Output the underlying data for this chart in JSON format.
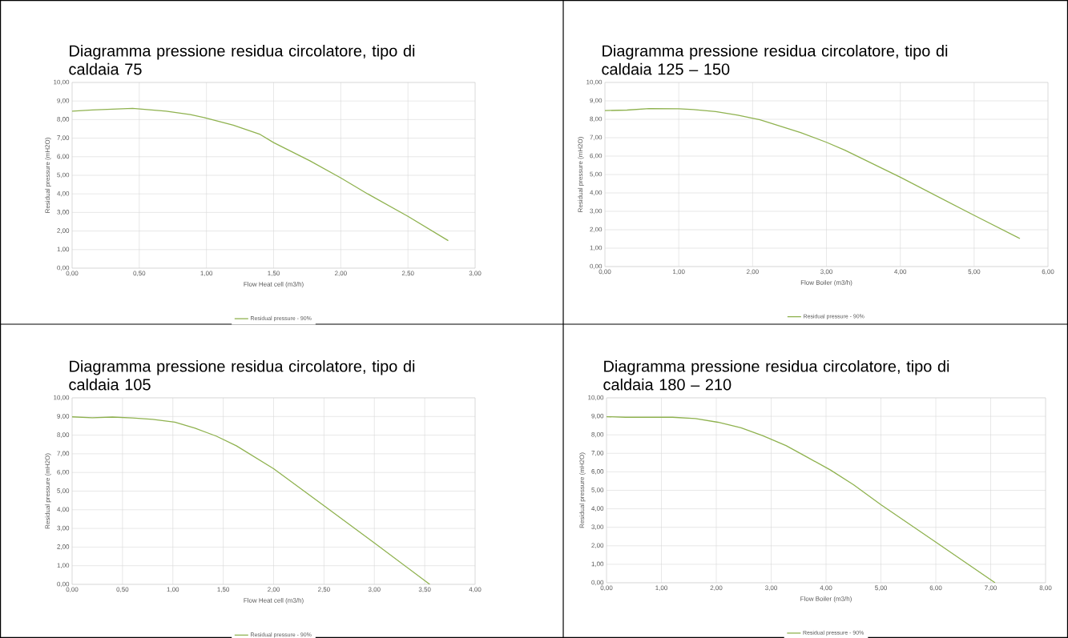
{
  "chart_data": [
    {
      "type": "line",
      "title": "Diagramma pressione residua circolatore, tipo di caldaia 75",
      "xlabel": "Flow Heat cell (m3/h)",
      "ylabel": "Residual pressure (mH2O)",
      "x": [
        0,
        0.15,
        0.45,
        0.7,
        0.88,
        1.0,
        1.2,
        1.4,
        1.5,
        1.77,
        2.0,
        2.2,
        2.5,
        2.8
      ],
      "series": [
        {
          "name": "Residual pressure - 90%",
          "color": "#8fb24f",
          "values": [
            8.45,
            8.52,
            8.6,
            8.45,
            8.27,
            8.08,
            7.7,
            7.2,
            6.76,
            5.78,
            4.86,
            4.0,
            2.79,
            1.48
          ]
        }
      ],
      "xlim": [
        0,
        3
      ],
      "ylim": [
        0,
        10
      ],
      "xticks": [
        {
          "value": 0,
          "label": "0,00"
        },
        {
          "value": 0.5,
          "label": "0,50"
        },
        {
          "value": 1,
          "label": "1,00"
        },
        {
          "value": 1.5,
          "label": "1,50"
        },
        {
          "value": 2,
          "label": "2,00"
        },
        {
          "value": 2.5,
          "label": "2,50"
        },
        {
          "value": 3,
          "label": "3,00"
        }
      ],
      "yticks": [
        {
          "value": 0,
          "label": "0,00"
        },
        {
          "value": 1,
          "label": "1,00"
        },
        {
          "value": 2,
          "label": "2,00"
        },
        {
          "value": 3,
          "label": "3,00"
        },
        {
          "value": 4,
          "label": "4,00"
        },
        {
          "value": 5,
          "label": "5,00"
        },
        {
          "value": 6,
          "label": "6,00"
        },
        {
          "value": 7,
          "label": "7,00"
        },
        {
          "value": 8,
          "label": "8,00"
        },
        {
          "value": 9,
          "label": "9,00"
        },
        {
          "value": 10,
          "label": "10,00"
        }
      ],
      "grid": true,
      "legend": "bottom",
      "marker": "none",
      "line_style": "solid"
    },
    {
      "type": "line",
      "title": "Diagramma pressione residua circolatore, tipo di caldaia 125 – 150",
      "xlabel": "Flow Boiler (m3/h)",
      "ylabel": "Residual pressure (mH2O)",
      "x": [
        0,
        0.3,
        0.6,
        1.0,
        1.2,
        1.5,
        1.8,
        2.1,
        2.65,
        3.0,
        3.25,
        4.0,
        5.0,
        5.62
      ],
      "series": [
        {
          "name": "Residual pressure - 90%",
          "color": "#8fb24f",
          "values": [
            8.47,
            8.5,
            8.58,
            8.57,
            8.53,
            8.42,
            8.22,
            7.97,
            7.28,
            6.75,
            6.32,
            4.85,
            2.78,
            1.52
          ]
        }
      ],
      "xlim": [
        0,
        6
      ],
      "ylim": [
        0,
        10
      ],
      "xticks": [
        {
          "value": 0,
          "label": "0,00"
        },
        {
          "value": 1,
          "label": "1,00"
        },
        {
          "value": 2,
          "label": "2,00"
        },
        {
          "value": 3,
          "label": "3,00"
        },
        {
          "value": 4,
          "label": "4,00"
        },
        {
          "value": 5,
          "label": "5,00"
        },
        {
          "value": 6,
          "label": "6,00"
        }
      ],
      "yticks": [
        {
          "value": 0,
          "label": "0,00"
        },
        {
          "value": 1,
          "label": "1,00"
        },
        {
          "value": 2,
          "label": "2,00"
        },
        {
          "value": 3,
          "label": "3,00"
        },
        {
          "value": 4,
          "label": "4,00"
        },
        {
          "value": 5,
          "label": "5,00"
        },
        {
          "value": 6,
          "label": "6,00"
        },
        {
          "value": 7,
          "label": "7,00"
        },
        {
          "value": 8,
          "label": "8,00"
        },
        {
          "value": 9,
          "label": "9,00"
        },
        {
          "value": 10,
          "label": "10,00"
        }
      ],
      "grid": true,
      "legend": "bottom",
      "marker": "none",
      "line_style": "solid"
    },
    {
      "type": "line",
      "title": "Diagramma pressione residua circolatore, tipo di caldaia 105",
      "xlabel": "Flow Heat cell (m3/h)",
      "ylabel": "Residual pressure (mH2O)",
      "x": [
        0,
        0.2,
        0.4,
        0.6,
        0.8,
        1.02,
        1.22,
        1.43,
        1.63,
        2.0,
        2.5,
        3.0,
        3.55
      ],
      "series": [
        {
          "name": "Residual pressure - 90%",
          "color": "#8fb24f",
          "values": [
            8.98,
            8.93,
            8.97,
            8.92,
            8.85,
            8.7,
            8.37,
            7.95,
            7.43,
            6.2,
            4.22,
            2.22,
            0.0
          ]
        }
      ],
      "xlim": [
        0,
        4
      ],
      "ylim": [
        0,
        10
      ],
      "xticks": [
        {
          "value": 0,
          "label": "0,00"
        },
        {
          "value": 0.5,
          "label": "0,50"
        },
        {
          "value": 1,
          "label": "1,00"
        },
        {
          "value": 1.5,
          "label": "1,50"
        },
        {
          "value": 2,
          "label": "2,00"
        },
        {
          "value": 2.5,
          "label": "2,50"
        },
        {
          "value": 3,
          "label": "3,00"
        },
        {
          "value": 3.5,
          "label": "3,50"
        },
        {
          "value": 4,
          "label": "4,00"
        }
      ],
      "yticks": [
        {
          "value": 0,
          "label": "0,00"
        },
        {
          "value": 1,
          "label": "1,00"
        },
        {
          "value": 2,
          "label": "2,00"
        },
        {
          "value": 3,
          "label": "3,00"
        },
        {
          "value": 4,
          "label": "4,00"
        },
        {
          "value": 5,
          "label": "5,00"
        },
        {
          "value": 6,
          "label": "6,00"
        },
        {
          "value": 7,
          "label": "7,00"
        },
        {
          "value": 8,
          "label": "8,00"
        },
        {
          "value": 9,
          "label": "9,00"
        },
        {
          "value": 10,
          "label": "10,00"
        }
      ],
      "grid": true,
      "legend": "bottom",
      "marker": "none",
      "line_style": "solid"
    },
    {
      "type": "line",
      "title": "Diagramma pressione residua circolatore, tipo di caldaia 180 – 210",
      "xlabel": "Flow Boiler (m3/h)",
      "ylabel": "Residual pressure (mH2O)",
      "x": [
        0,
        0.35,
        1.2,
        1.62,
        2.03,
        2.45,
        2.85,
        3.27,
        3.65,
        4.08,
        4.5,
        5.0,
        6.0,
        7.08
      ],
      "series": [
        {
          "name": "Residual pressure - 90%",
          "color": "#8fb24f",
          "values": [
            8.98,
            8.95,
            8.95,
            8.88,
            8.68,
            8.38,
            7.95,
            7.42,
            6.8,
            6.1,
            5.3,
            4.22,
            2.2,
            0.0
          ]
        }
      ],
      "xlim": [
        0,
        8
      ],
      "ylim": [
        0,
        10
      ],
      "xticks": [
        {
          "value": 0,
          "label": "0,00"
        },
        {
          "value": 1,
          "label": "1,00"
        },
        {
          "value": 2,
          "label": "2,00"
        },
        {
          "value": 3,
          "label": "3,00"
        },
        {
          "value": 4,
          "label": "4,00"
        },
        {
          "value": 5,
          "label": "5,00"
        },
        {
          "value": 6,
          "label": "6,00"
        },
        {
          "value": 7,
          "label": "7,00"
        },
        {
          "value": 8,
          "label": "8,00"
        }
      ],
      "yticks": [
        {
          "value": 0,
          "label": "0,00"
        },
        {
          "value": 1,
          "label": "1,00"
        },
        {
          "value": 2,
          "label": "2,00"
        },
        {
          "value": 3,
          "label": "3,00"
        },
        {
          "value": 4,
          "label": "4,00"
        },
        {
          "value": 5,
          "label": "5,00"
        },
        {
          "value": 6,
          "label": "6,00"
        },
        {
          "value": 7,
          "label": "7,00"
        },
        {
          "value": 8,
          "label": "8,00"
        },
        {
          "value": 9,
          "label": "9,00"
        },
        {
          "value": 10,
          "label": "10,00"
        }
      ],
      "grid": true,
      "legend": "bottom",
      "marker": "none",
      "line_style": "solid"
    }
  ]
}
